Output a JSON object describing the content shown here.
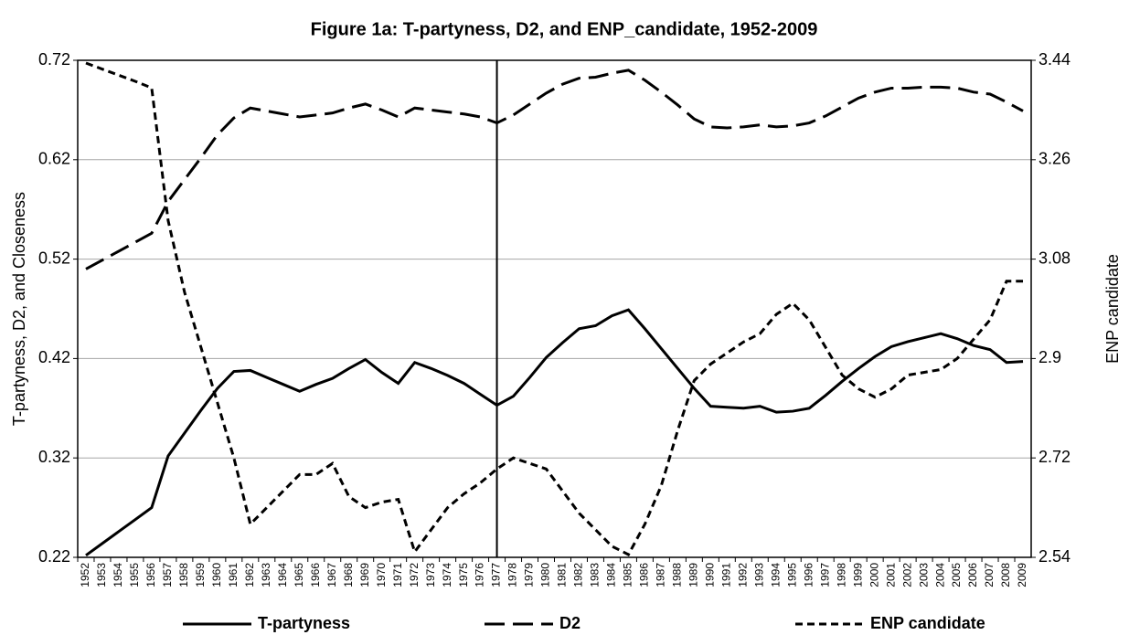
{
  "chart_data": {
    "type": "line",
    "title": "Figure 1a: T-partyness, D2, and ENP_candidate, 1952-2009",
    "y_label": "T-partyness, D2, and Closeness",
    "y2_label": "ENP candidate",
    "categories": [
      "1952",
      "1953",
      "1954",
      "1955",
      "1956",
      "1957",
      "1958",
      "1959",
      "1960",
      "1961",
      "1962",
      "1963",
      "1964",
      "1965",
      "1966",
      "1967",
      "1968",
      "1969",
      "1970",
      "1971",
      "1972",
      "1973",
      "1974",
      "1975",
      "1976",
      "1977",
      "1978",
      "1979",
      "1980",
      "1981",
      "1982",
      "1983",
      "1984",
      "1985",
      "1986",
      "1987",
      "1988",
      "1989",
      "1990",
      "1991",
      "1992",
      "1993",
      "1994",
      "1995",
      "1996",
      "1997",
      "1998",
      "1999",
      "2000",
      "2001",
      "2002",
      "2003",
      "2004",
      "2005",
      "2006",
      "2007",
      "2008",
      "2009"
    ],
    "ylim": [
      0.22,
      0.72
    ],
    "yticks": [
      0.22,
      0.32,
      0.42,
      0.52,
      0.62,
      0.72
    ],
    "y2lim": [
      2.54,
      3.44
    ],
    "y2ticks": [
      2.54,
      2.72,
      2.9,
      3.08,
      3.26,
      3.44
    ],
    "grid": true,
    "legend": "bottom",
    "reference_category": "1977",
    "series": [
      {
        "name": "T-partyness",
        "color": "#000000",
        "dash": "solid",
        "values": [
          0.222,
          0.234,
          0.246,
          0.258,
          0.27,
          0.322,
          0.345,
          0.368,
          0.39,
          0.407,
          0.408,
          0.401,
          0.394,
          0.387,
          0.394,
          0.4,
          0.41,
          0.419,
          0.406,
          0.395,
          0.416,
          0.41,
          0.403,
          0.395,
          0.384,
          0.373,
          0.382,
          0.401,
          0.421,
          0.436,
          0.45,
          0.453,
          0.463,
          0.469,
          0.45,
          0.43,
          0.41,
          0.39,
          0.372,
          0.371,
          0.37,
          0.372,
          0.366,
          0.367,
          0.37,
          0.383,
          0.397,
          0.41,
          0.422,
          0.432,
          0.437,
          0.441,
          0.445,
          0.44,
          0.433,
          0.429,
          0.416,
          0.417
        ]
      },
      {
        "name": "D2",
        "color": "#000000",
        "dash": "long",
        "values": [
          0.51,
          0.519,
          0.528,
          0.537,
          0.546,
          0.578,
          0.6,
          0.622,
          0.645,
          0.662,
          0.672,
          0.669,
          0.666,
          0.663,
          0.665,
          0.667,
          0.672,
          0.676,
          0.67,
          0.663,
          0.672,
          0.67,
          0.668,
          0.666,
          0.663,
          0.657,
          0.665,
          0.676,
          0.687,
          0.696,
          0.702,
          0.703,
          0.707,
          0.71,
          0.7,
          0.688,
          0.675,
          0.661,
          0.653,
          0.652,
          0.653,
          0.655,
          0.653,
          0.654,
          0.657,
          0.664,
          0.673,
          0.682,
          0.688,
          0.692,
          0.692,
          0.693,
          0.693,
          0.692,
          0.688,
          0.686,
          0.678,
          0.669
        ]
      },
      {
        "name": "ENP candidate",
        "color": "#000000",
        "dash": "short",
        "axis": "y2",
        "values": [
          3.435,
          3.424,
          3.413,
          3.402,
          3.39,
          3.15,
          3.02,
          2.92,
          2.82,
          2.72,
          2.6,
          2.63,
          2.66,
          2.69,
          2.69,
          2.71,
          2.65,
          2.63,
          2.64,
          2.645,
          2.55,
          2.59,
          2.63,
          2.655,
          2.675,
          2.7,
          2.72,
          2.71,
          2.7,
          2.66,
          2.62,
          2.59,
          2.56,
          2.545,
          2.6,
          2.67,
          2.77,
          2.86,
          2.89,
          2.91,
          2.93,
          2.945,
          2.98,
          3.0,
          2.97,
          2.92,
          2.87,
          2.845,
          2.83,
          2.845,
          2.87,
          2.875,
          2.88,
          2.9,
          2.935,
          2.97,
          3.04,
          3.04
        ]
      }
    ]
  }
}
